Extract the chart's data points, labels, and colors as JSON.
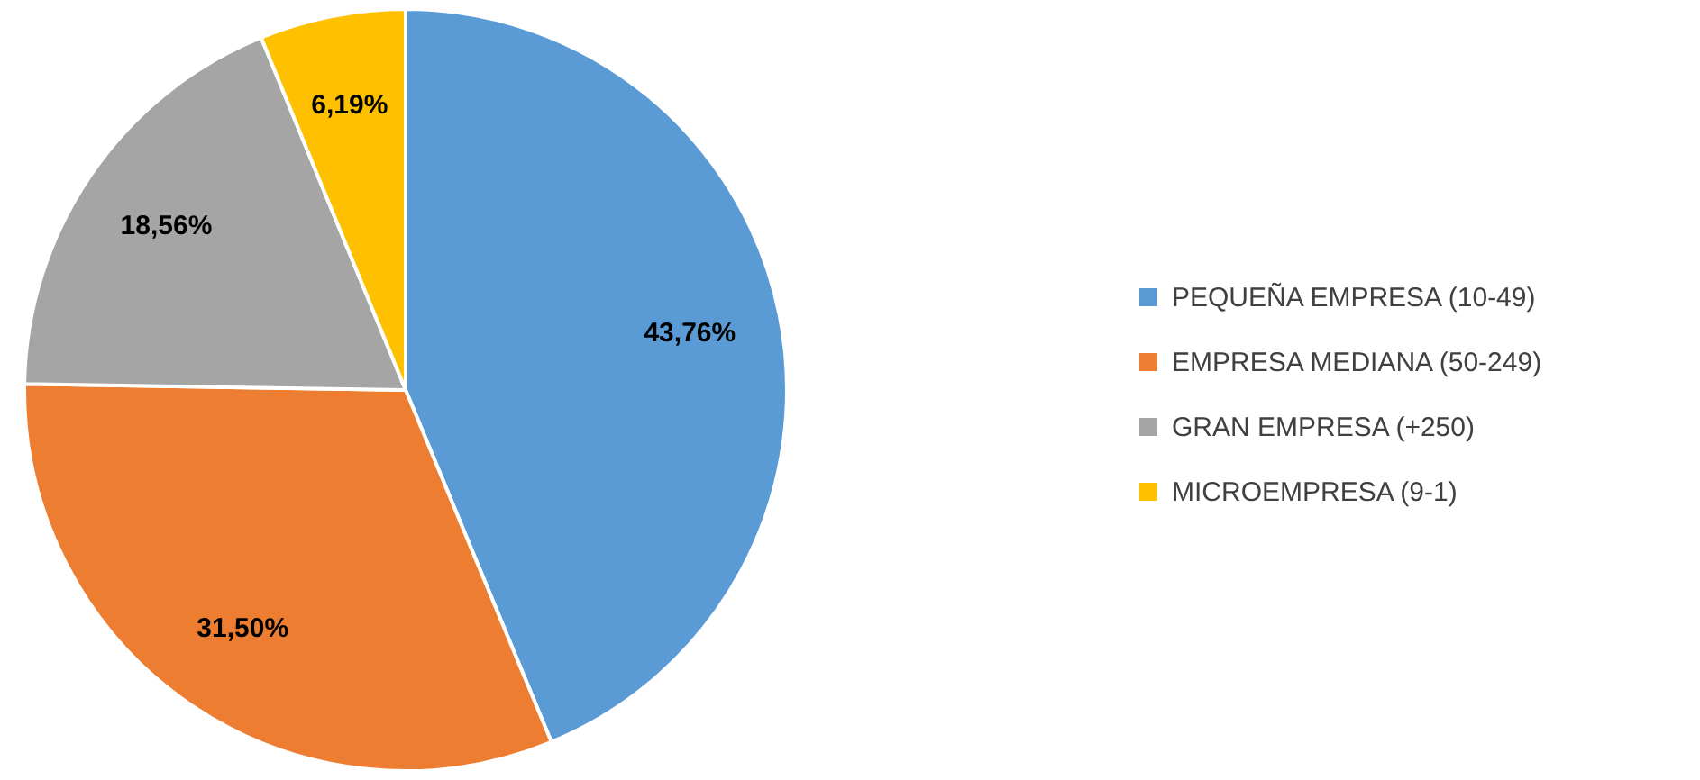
{
  "chart_data": {
    "type": "pie",
    "categories": [
      "PEQUEÑA EMPRESA (10-49)",
      "EMPRESA MEDIANA (50-249)",
      "GRAN EMPRESA (+250)",
      "MICROEMPRESA (9-1)"
    ],
    "values": [
      43.76,
      31.5,
      18.56,
      6.19
    ],
    "colors": [
      "#5b9bd5",
      "#ed7d31",
      "#a5a5a5",
      "#ffc000"
    ],
    "value_labels": [
      "43,76%",
      "31,50%",
      "18,56%",
      "6,19%"
    ],
    "legend": "right"
  }
}
